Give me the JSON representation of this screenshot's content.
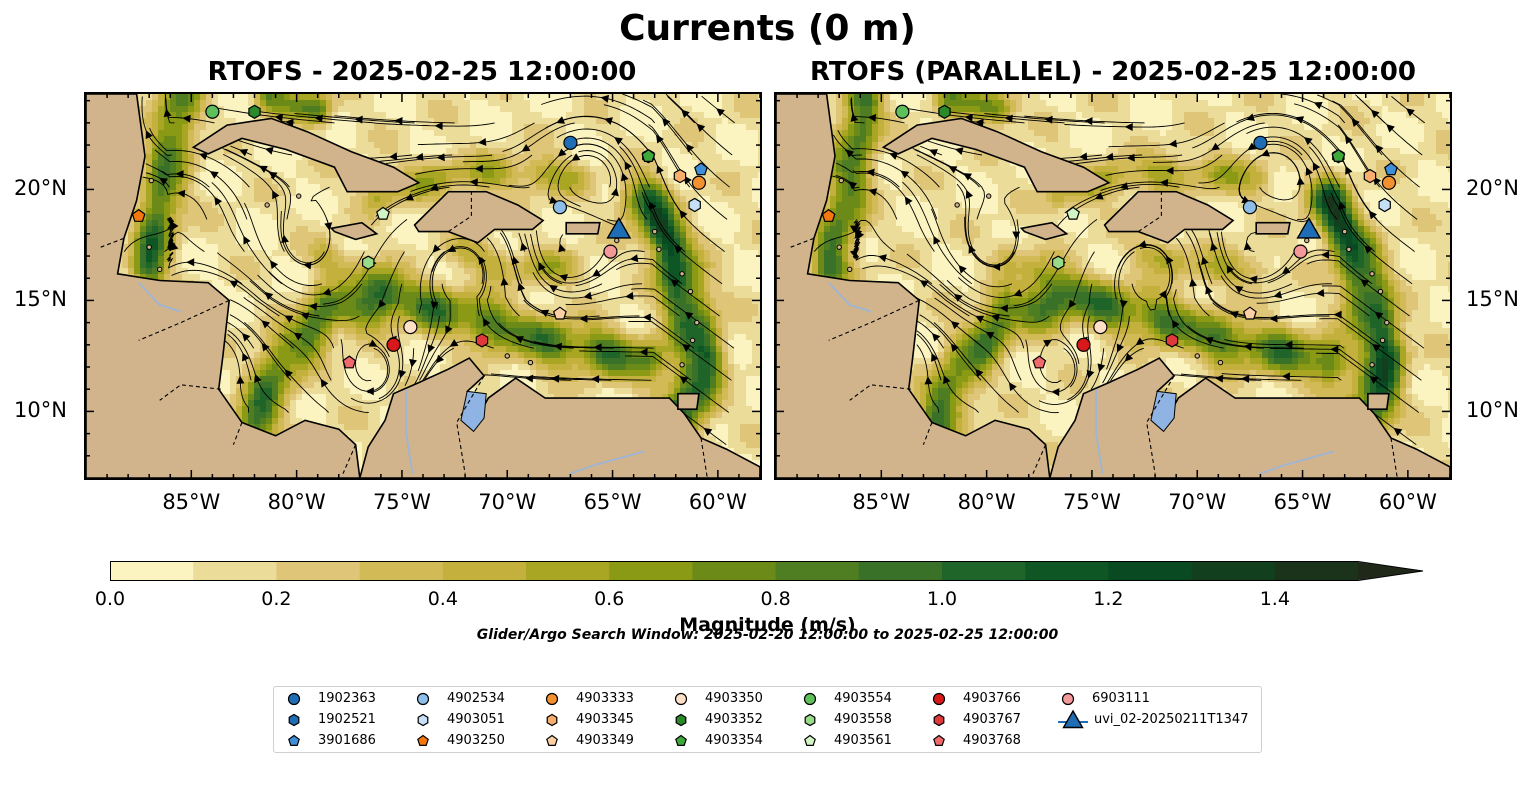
{
  "figure": {
    "title": "Currents (0 m)",
    "left_panel_title": "RTOFS - 2025-02-25 12:00:00",
    "right_panel_title": "RTOFS (PARALLEL) - 2025-02-25 12:00:00"
  },
  "map": {
    "lon_range": [
      -90,
      -58
    ],
    "lat_range": [
      7,
      24.3
    ],
    "x_ticks": [
      "85°W",
      "80°W",
      "75°W",
      "70°W",
      "65°W",
      "60°W"
    ],
    "x_tick_values": [
      -85,
      -80,
      -75,
      -70,
      -65,
      -60
    ],
    "y_ticks": [
      "20°N",
      "15°N",
      "10°N"
    ],
    "y_tick_values": [
      20,
      15,
      10
    ],
    "land_color": "#d2b48c",
    "lake_color": "#8fb4e3",
    "stream_color": "#000000"
  },
  "colorbar": {
    "label": "Magnitude (m/s)",
    "tick_labels": [
      "0.0",
      "0.2",
      "0.4",
      "0.6",
      "0.8",
      "1.0",
      "1.2",
      "1.4"
    ],
    "tick_values": [
      0,
      0.2,
      0.4,
      0.6,
      0.8,
      1.0,
      1.2,
      1.4
    ],
    "min": 0,
    "max": 1.5,
    "extend": "max",
    "colors": [
      "#fbf4c0",
      "#ecdc9a",
      "#dfc577",
      "#d2bb56",
      "#c4b13d",
      "#a9a624",
      "#8b9a14",
      "#6c8a18",
      "#4f7d22",
      "#3a7128",
      "#1f6428",
      "#0e5725",
      "#0a4a22",
      "#12401f",
      "#1c331b",
      "#20281a"
    ]
  },
  "search_window": "Glider/Argo Search Window: 2025-02-20 12:00:00 to 2025-02-25 12:00:00",
  "legend": {
    "items": [
      {
        "label": "1902363",
        "marker": "circle",
        "color": "#1f6db4"
      },
      {
        "label": "1902521",
        "marker": "hexagon",
        "color": "#1f6db4"
      },
      {
        "label": "3901686",
        "marker": "pentagon",
        "color": "#3f8ed8"
      },
      {
        "label": "4902534",
        "marker": "circle",
        "color": "#8dbde8"
      },
      {
        "label": "4903051",
        "marker": "hexagon",
        "color": "#c6e1f7"
      },
      {
        "label": "4903250",
        "marker": "pentagon",
        "color": "#f4780e"
      },
      {
        "label": "4903333",
        "marker": "circle",
        "color": "#f39030"
      },
      {
        "label": "4903345",
        "marker": "hexagon",
        "color": "#f8ae6c"
      },
      {
        "label": "4903349",
        "marker": "pentagon",
        "color": "#fcd0a5"
      },
      {
        "label": "4903350",
        "marker": "circle",
        "color": "#fde0c6"
      },
      {
        "label": "4903352",
        "marker": "hexagon",
        "color": "#2a8a2a"
      },
      {
        "label": "4903354",
        "marker": "pentagon",
        "color": "#3ea83a"
      },
      {
        "label": "4903554",
        "marker": "circle",
        "color": "#5ec05a"
      },
      {
        "label": "4903558",
        "marker": "hexagon",
        "color": "#98dc8a"
      },
      {
        "label": "4903561",
        "marker": "pentagon",
        "color": "#d2f5c6"
      },
      {
        "label": "4903766",
        "marker": "circle",
        "color": "#d7191c"
      },
      {
        "label": "4903767",
        "marker": "hexagon",
        "color": "#e0393c"
      },
      {
        "label": "4903768",
        "marker": "pentagon",
        "color": "#f06a6c"
      },
      {
        "label": "6903111",
        "marker": "circle",
        "color": "#f4999a"
      },
      {
        "label": "uvi_02-20250211T1347",
        "marker": "triangle",
        "color": "#1f6db4"
      }
    ]
  },
  "floats": [
    {
      "id": "1902363",
      "lon": -67.0,
      "lat": 22.1
    },
    {
      "id": "1902521",
      "lon": -63.3,
      "lat": 21.5
    },
    {
      "id": "3901686",
      "lon": -60.8,
      "lat": 20.9
    },
    {
      "id": "4902534",
      "lon": -67.5,
      "lat": 19.2
    },
    {
      "id": "4903051",
      "lon": -61.1,
      "lat": 19.3
    },
    {
      "id": "4903250",
      "lon": -87.5,
      "lat": 18.8
    },
    {
      "id": "4903333",
      "lon": -60.9,
      "lat": 20.3
    },
    {
      "id": "4903345",
      "lon": -61.8,
      "lat": 20.6
    },
    {
      "id": "4903349",
      "lon": -67.5,
      "lat": 14.4
    },
    {
      "id": "4903350",
      "lon": -74.6,
      "lat": 13.8
    },
    {
      "id": "4903352",
      "lon": -82.0,
      "lat": 23.5
    },
    {
      "id": "4903354",
      "lon": -63.3,
      "lat": 21.5
    },
    {
      "id": "4903554",
      "lon": -84.0,
      "lat": 23.5
    },
    {
      "id": "4903558",
      "lon": -76.6,
      "lat": 16.7
    },
    {
      "id": "4903561",
      "lon": -75.9,
      "lat": 18.9
    },
    {
      "id": "4903766",
      "lon": -75.4,
      "lat": 13.0
    },
    {
      "id": "4903767",
      "lon": -71.2,
      "lat": 13.2
    },
    {
      "id": "4903768",
      "lon": -77.5,
      "lat": 12.2
    },
    {
      "id": "6903111",
      "lon": -65.1,
      "lat": 17.2
    },
    {
      "id": "uvi_02-20250211T1347",
      "lon": -64.7,
      "lat": 18.2
    }
  ]
}
